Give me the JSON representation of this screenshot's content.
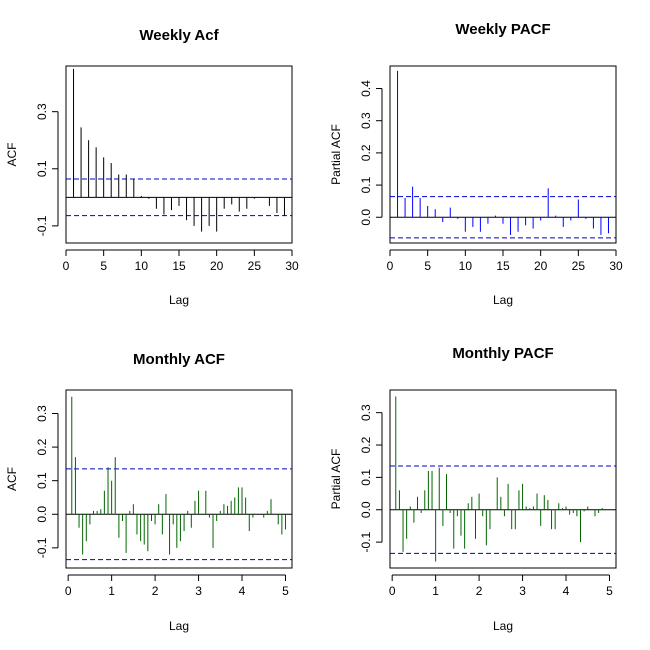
{
  "chart_data": [
    {
      "type": "bar",
      "title": "Weekly Acf",
      "xlabel": "Lag",
      "ylabel": "ACF",
      "xlim": [
        0,
        30
      ],
      "ylim": [
        -0.16,
        0.46
      ],
      "x_ticks": [
        0,
        5,
        10,
        15,
        20,
        25,
        30
      ],
      "y_ticks": [
        -0.1,
        0.1,
        0.3
      ],
      "y_tick_labels": [
        "-0.1",
        "0.1",
        "0.3"
      ],
      "conf_bounds": [
        0.064,
        -0.064
      ],
      "bar_color": "#000000",
      "conf_color": "#0000cc",
      "x": [
        1,
        2,
        3,
        4,
        5,
        6,
        7,
        8,
        9,
        10,
        11,
        12,
        13,
        14,
        15,
        16,
        17,
        18,
        19,
        20,
        21,
        22,
        23,
        24,
        25,
        26,
        27,
        28,
        29
      ],
      "values": [
        0.45,
        0.245,
        0.2,
        0.175,
        0.14,
        0.12,
        0.08,
        0.08,
        0.065,
        0.005,
        -0.005,
        -0.04,
        -0.06,
        -0.045,
        -0.03,
        -0.08,
        -0.1,
        -0.12,
        -0.1,
        -0.12,
        -0.04,
        -0.025,
        -0.05,
        -0.04,
        -0.005,
        0.0,
        -0.03,
        -0.055,
        -0.065
      ]
    },
    {
      "type": "bar",
      "title": "Weekly PACF",
      "xlabel": "Lag",
      "ylabel": "Partial ACF",
      "xlim": [
        0,
        30
      ],
      "ylim": [
        -0.08,
        0.47
      ],
      "x_ticks": [
        0,
        5,
        10,
        15,
        20,
        25,
        30
      ],
      "y_ticks": [
        0.0,
        0.1,
        0.2,
        0.3,
        0.4
      ],
      "y_tick_labels": [
        "0.0",
        "0.1",
        "0.2",
        "0.3",
        "0.4"
      ],
      "conf_bounds": [
        0.064,
        -0.064
      ],
      "bar_color": "#0000ff",
      "conf_color": "#0000cc",
      "x": [
        1,
        2,
        3,
        4,
        5,
        6,
        7,
        8,
        9,
        10,
        11,
        12,
        13,
        14,
        15,
        16,
        17,
        18,
        19,
        20,
        21,
        22,
        23,
        24,
        25,
        26,
        27,
        28,
        29
      ],
      "values": [
        0.455,
        0.06,
        0.095,
        0.06,
        0.035,
        0.025,
        -0.015,
        0.03,
        -0.005,
        -0.045,
        -0.03,
        -0.045,
        -0.02,
        0.005,
        -0.02,
        -0.055,
        -0.045,
        -0.025,
        -0.035,
        -0.01,
        0.09,
        0.005,
        -0.03,
        -0.01,
        0.055,
        -0.005,
        -0.035,
        -0.055,
        -0.05
      ]
    },
    {
      "type": "bar",
      "title": "Monthly ACF",
      "xlabel": "Lag",
      "ylabel": "ACF",
      "xlim": [
        -0.05,
        5.15
      ],
      "ylim": [
        -0.16,
        0.37
      ],
      "x_ticks": [
        0,
        1,
        2,
        3,
        4,
        5
      ],
      "y_ticks": [
        -0.1,
        0.0,
        0.1,
        0.2,
        0.3
      ],
      "y_tick_labels": [
        "-0.1",
        "0.0",
        "0.1",
        "0.2",
        "0.3"
      ],
      "conf_bounds": [
        0.135,
        -0.135
      ],
      "bar_color": "#006400",
      "conf_color": "#0000cc",
      "x": [
        0.083,
        0.167,
        0.25,
        0.333,
        0.417,
        0.5,
        0.583,
        0.667,
        0.75,
        0.833,
        0.917,
        1.0,
        1.083,
        1.167,
        1.25,
        1.333,
        1.417,
        1.5,
        1.583,
        1.667,
        1.75,
        1.833,
        1.917,
        2.0,
        2.083,
        2.167,
        2.25,
        2.333,
        2.417,
        2.5,
        2.583,
        2.667,
        2.75,
        2.833,
        2.917,
        3.0,
        3.083,
        3.167,
        3.25,
        3.333,
        3.417,
        3.5,
        3.583,
        3.667,
        3.75,
        3.833,
        3.917,
        4.0,
        4.083,
        4.167,
        4.25,
        4.333,
        4.417,
        4.5,
        4.583,
        4.667,
        4.75,
        4.833,
        4.917,
        5.0
      ],
      "values": [
        0.35,
        0.17,
        -0.04,
        -0.12,
        -0.08,
        -0.03,
        0.01,
        0.01,
        0.015,
        0.07,
        0.14,
        0.1,
        0.17,
        -0.07,
        -0.02,
        -0.115,
        0.01,
        0.03,
        -0.06,
        -0.08,
        -0.09,
        -0.11,
        -0.02,
        -0.03,
        0.03,
        -0.06,
        0.06,
        -0.12,
        -0.03,
        -0.1,
        -0.08,
        -0.05,
        0.01,
        -0.04,
        0.04,
        0.07,
        0.0,
        0.07,
        -0.01,
        -0.1,
        -0.02,
        0.01,
        0.03,
        0.025,
        0.04,
        0.05,
        0.08,
        0.08,
        0.05,
        -0.05,
        -0.01,
        0.0,
        0.0,
        -0.01,
        0.01,
        0.045,
        0.0,
        -0.03,
        -0.06,
        -0.045
      ]
    },
    {
      "type": "bar",
      "title": "Monthly PACF",
      "xlabel": "Lag",
      "ylabel": "Partial ACF",
      "xlim": [
        -0.05,
        5.15
      ],
      "ylim": [
        -0.18,
        0.37
      ],
      "x_ticks": [
        0,
        1,
        2,
        3,
        4,
        5
      ],
      "y_ticks": [
        -0.1,
        0.0,
        0.1,
        0.2,
        0.3
      ],
      "y_tick_labels": [
        "-0.1",
        "0.0",
        "0.1",
        "0.2",
        "0.3"
      ],
      "conf_bounds": [
        0.135,
        -0.135
      ],
      "bar_color": "#006400",
      "conf_color": "#0000cc",
      "x": [
        0.083,
        0.167,
        0.25,
        0.333,
        0.417,
        0.5,
        0.583,
        0.667,
        0.75,
        0.833,
        0.917,
        1.0,
        1.083,
        1.167,
        1.25,
        1.333,
        1.417,
        1.5,
        1.583,
        1.667,
        1.75,
        1.833,
        1.917,
        2.0,
        2.083,
        2.167,
        2.25,
        2.333,
        2.417,
        2.5,
        2.583,
        2.667,
        2.75,
        2.833,
        2.917,
        3.0,
        3.083,
        3.167,
        3.25,
        3.333,
        3.417,
        3.5,
        3.583,
        3.667,
        3.75,
        3.833,
        3.917,
        4.0,
        4.083,
        4.167,
        4.25,
        4.333,
        4.417,
        4.5,
        4.583,
        4.667,
        4.75,
        4.833,
        4.917,
        5.0
      ],
      "values": [
        0.35,
        0.06,
        -0.13,
        -0.09,
        0.01,
        -0.04,
        0.04,
        -0.01,
        0.06,
        0.12,
        0.12,
        -0.16,
        0.13,
        -0.05,
        0.11,
        -0.01,
        -0.12,
        -0.02,
        -0.08,
        -0.12,
        0.02,
        0.04,
        -0.09,
        0.05,
        -0.02,
        -0.11,
        -0.06,
        0.0,
        0.1,
        0.04,
        -0.02,
        0.08,
        -0.06,
        -0.06,
        0.06,
        0.08,
        0.01,
        0.005,
        0.01,
        0.05,
        -0.05,
        0.045,
        0.03,
        -0.06,
        -0.06,
        0.02,
        0.005,
        0.01,
        -0.015,
        -0.01,
        -0.02,
        -0.1,
        -0.005,
        0.01,
        0.0,
        -0.02,
        -0.01,
        0.005,
        0.0,
        0.0
      ]
    }
  ]
}
